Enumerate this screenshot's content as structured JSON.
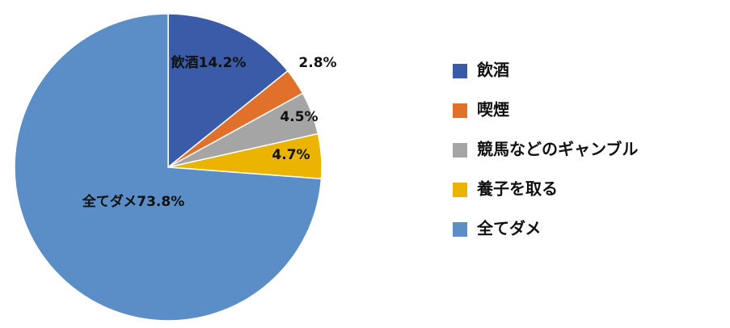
{
  "chart_data": {
    "type": "pie",
    "categories": [
      "飲酒",
      "喫煙",
      "競馬などのギャンブル",
      "養子を取る",
      "全てダメ"
    ],
    "values": [
      14.2,
      2.8,
      4.5,
      4.7,
      73.8
    ],
    "value_labels": [
      "14.2%",
      "2.8%",
      "4.5%",
      "4.7%",
      "73.8%"
    ],
    "colors": [
      "#3a5ca8",
      "#e0702a",
      "#a5a5a5",
      "#eab400",
      "#5b8ec7"
    ]
  }
}
